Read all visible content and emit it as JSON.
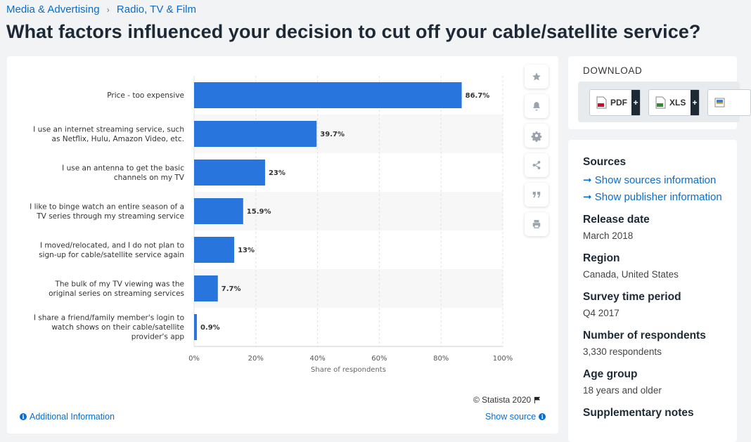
{
  "breadcrumb": {
    "item1": "Media & Advertising",
    "separator": "›",
    "item2": "Radio, TV & Film"
  },
  "page_title": "What factors influenced your decision to cut off your cable/satellite service?",
  "chart_data": {
    "type": "bar",
    "orientation": "horizontal",
    "categories": [
      [
        "Price - too expensive"
      ],
      [
        "I use an internet streaming service, such",
        "as Netflix, Hulu, Amazon Video, etc."
      ],
      [
        "I use an antenna to get the basic",
        "channels on my TV"
      ],
      [
        "I like to binge watch an entire season of a",
        "TV series through my streaming service"
      ],
      [
        "I moved/relocated, and I do not plan to",
        "sign-up for cable/satellite service again"
      ],
      [
        "The bulk of my TV viewing was the",
        "original series on streaming services"
      ],
      [
        "I share a friend/family member's login to",
        "watch shows on their cable/satellite",
        "provider's app"
      ]
    ],
    "values": [
      86.7,
      39.7,
      23,
      15.9,
      13,
      7.7,
      0.9
    ],
    "value_labels": [
      "86.7%",
      "39.7%",
      "23%",
      "15.9%",
      "13%",
      "7.7%",
      "0.9%"
    ],
    "xlim": [
      0,
      100
    ],
    "x_ticks": [
      0,
      20,
      40,
      60,
      80,
      100
    ],
    "x_tick_labels": [
      "0%",
      "20%",
      "40%",
      "60%",
      "80%",
      "100%"
    ],
    "xlabel": "Share of respondents",
    "bar_color": "#2876dd",
    "alt_row_color": "#f7f7f7",
    "grid": true
  },
  "chart_footer": {
    "copyright": "© Statista 2020",
    "additional_info": "Additional Information",
    "show_source": "Show source"
  },
  "tools": [
    "star-icon",
    "bell-icon",
    "gear-icon",
    "share-icon",
    "quote-icon",
    "print-icon"
  ],
  "download": {
    "title": "DOWNLOAD",
    "pdf_label": "PDF",
    "xls_label": "XLS",
    "plus": "+"
  },
  "sidebar": {
    "sources_heading": "Sources",
    "show_sources": "Show sources information",
    "show_publisher": "Show publisher information",
    "link_arrow": "➞",
    "release_heading": "Release date",
    "release_value": "March 2018",
    "region_heading": "Region",
    "region_value": "Canada, United States",
    "survey_heading": "Survey time period",
    "survey_value": "Q4 2017",
    "respondents_heading": "Number of respondents",
    "respondents_value": "3,330 respondents",
    "age_heading": "Age group",
    "age_value": "18 years and older",
    "notes_heading": "Supplementary notes"
  },
  "colors": {
    "accent": "#0a6dcc",
    "bar": "#2876dd",
    "heading": "#1d2a36",
    "page_bg": "#f1f3f5"
  }
}
